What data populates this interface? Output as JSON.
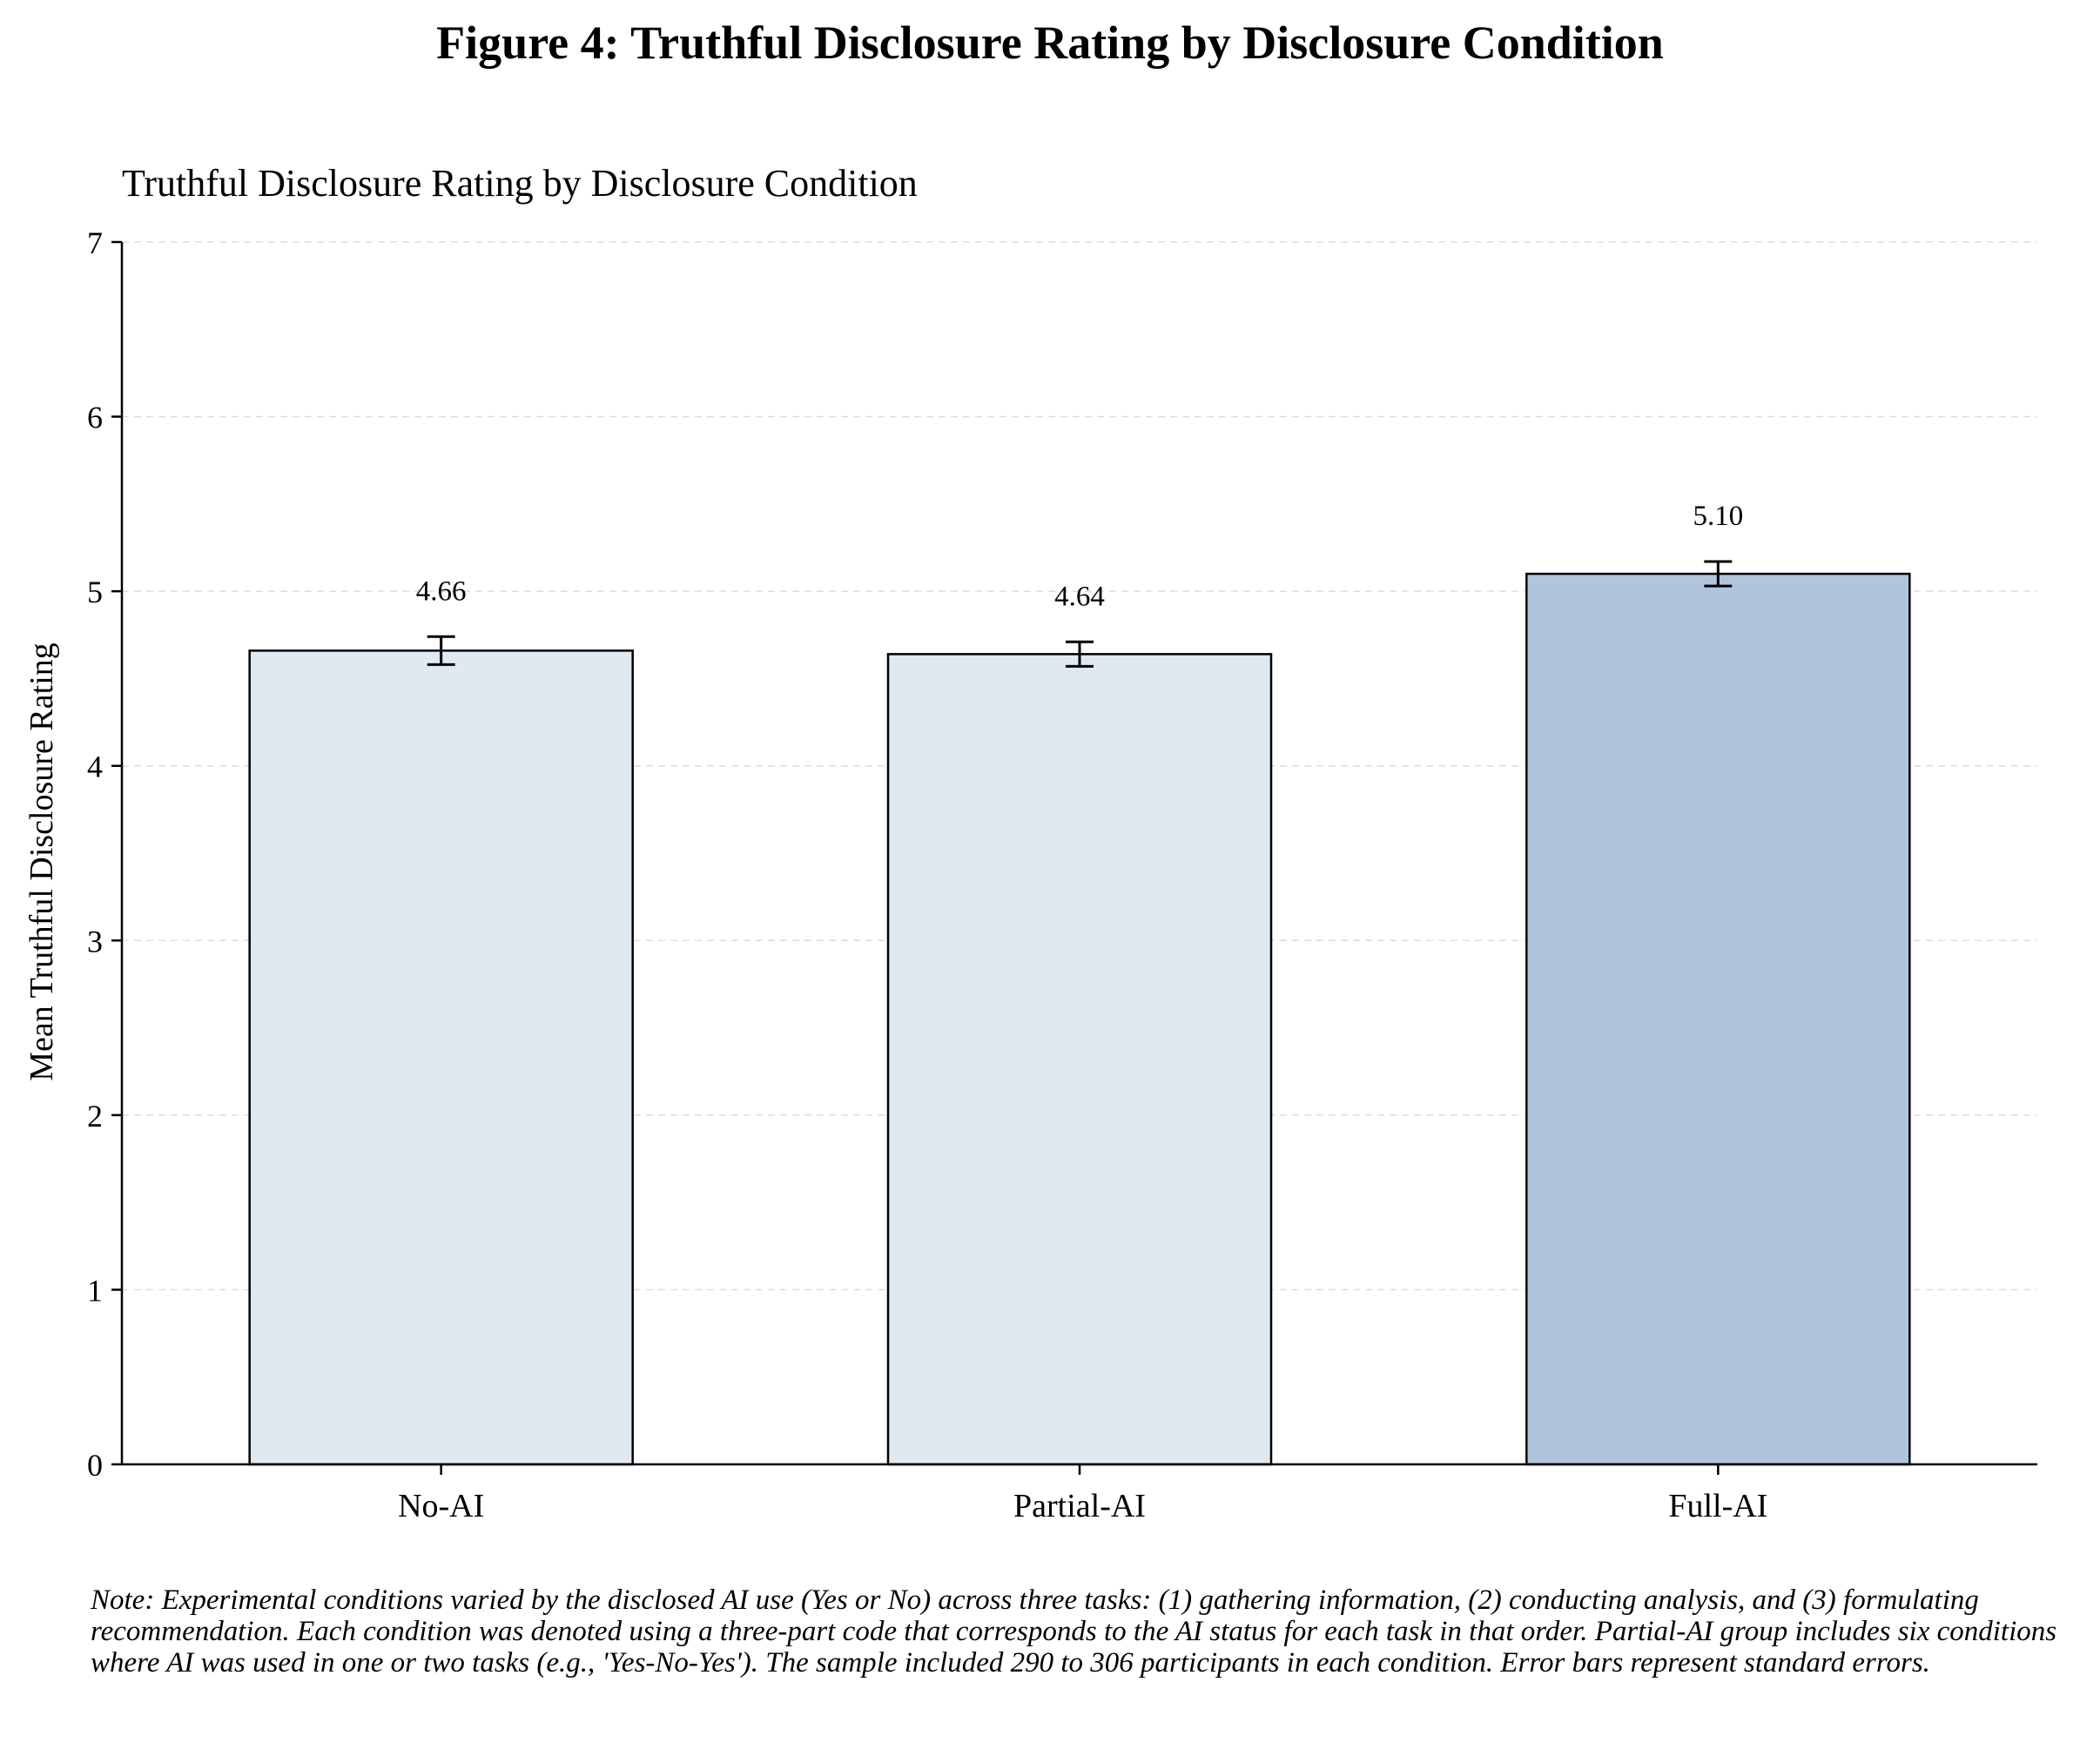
{
  "figure_title": "Figure 4: Truthful Disclosure Rating by Disclosure Condition",
  "note": "Note: Experimental conditions varied by the disclosed AI use (Yes or No) across three tasks: (1) gathering information, (2) conducting analysis, and (3) formulating recommendation. Each condition was denoted using a three-part code that corresponds to the AI status for each task in that order. Partial-AI group includes six conditions where AI was used in one or two tasks (e.g., 'Yes-No-Yes'). The sample included 290 to 306 participants in each condition. Error bars represent standard errors.",
  "chart_data": {
    "type": "bar",
    "title": "Truthful Disclosure Rating by Disclosure Condition",
    "xlabel": "",
    "ylabel": "Mean Truthful Disclosure Rating",
    "categories": [
      "No-AI",
      "Partial-AI",
      "Full-AI"
    ],
    "values": [
      4.66,
      4.64,
      5.1
    ],
    "value_labels": [
      "4.66",
      "4.64",
      "5.10"
    ],
    "errors": [
      0.08,
      0.07,
      0.07
    ],
    "ylim": [
      0,
      7
    ],
    "yticks": [
      0,
      1,
      2,
      3,
      4,
      5,
      6,
      7
    ],
    "grid": "horizontal dashed",
    "legend": "none",
    "colors": [
      "#e0e8f1",
      "#e0e8f1",
      "#b0c4dd"
    ],
    "edge_color": "#000000"
  }
}
